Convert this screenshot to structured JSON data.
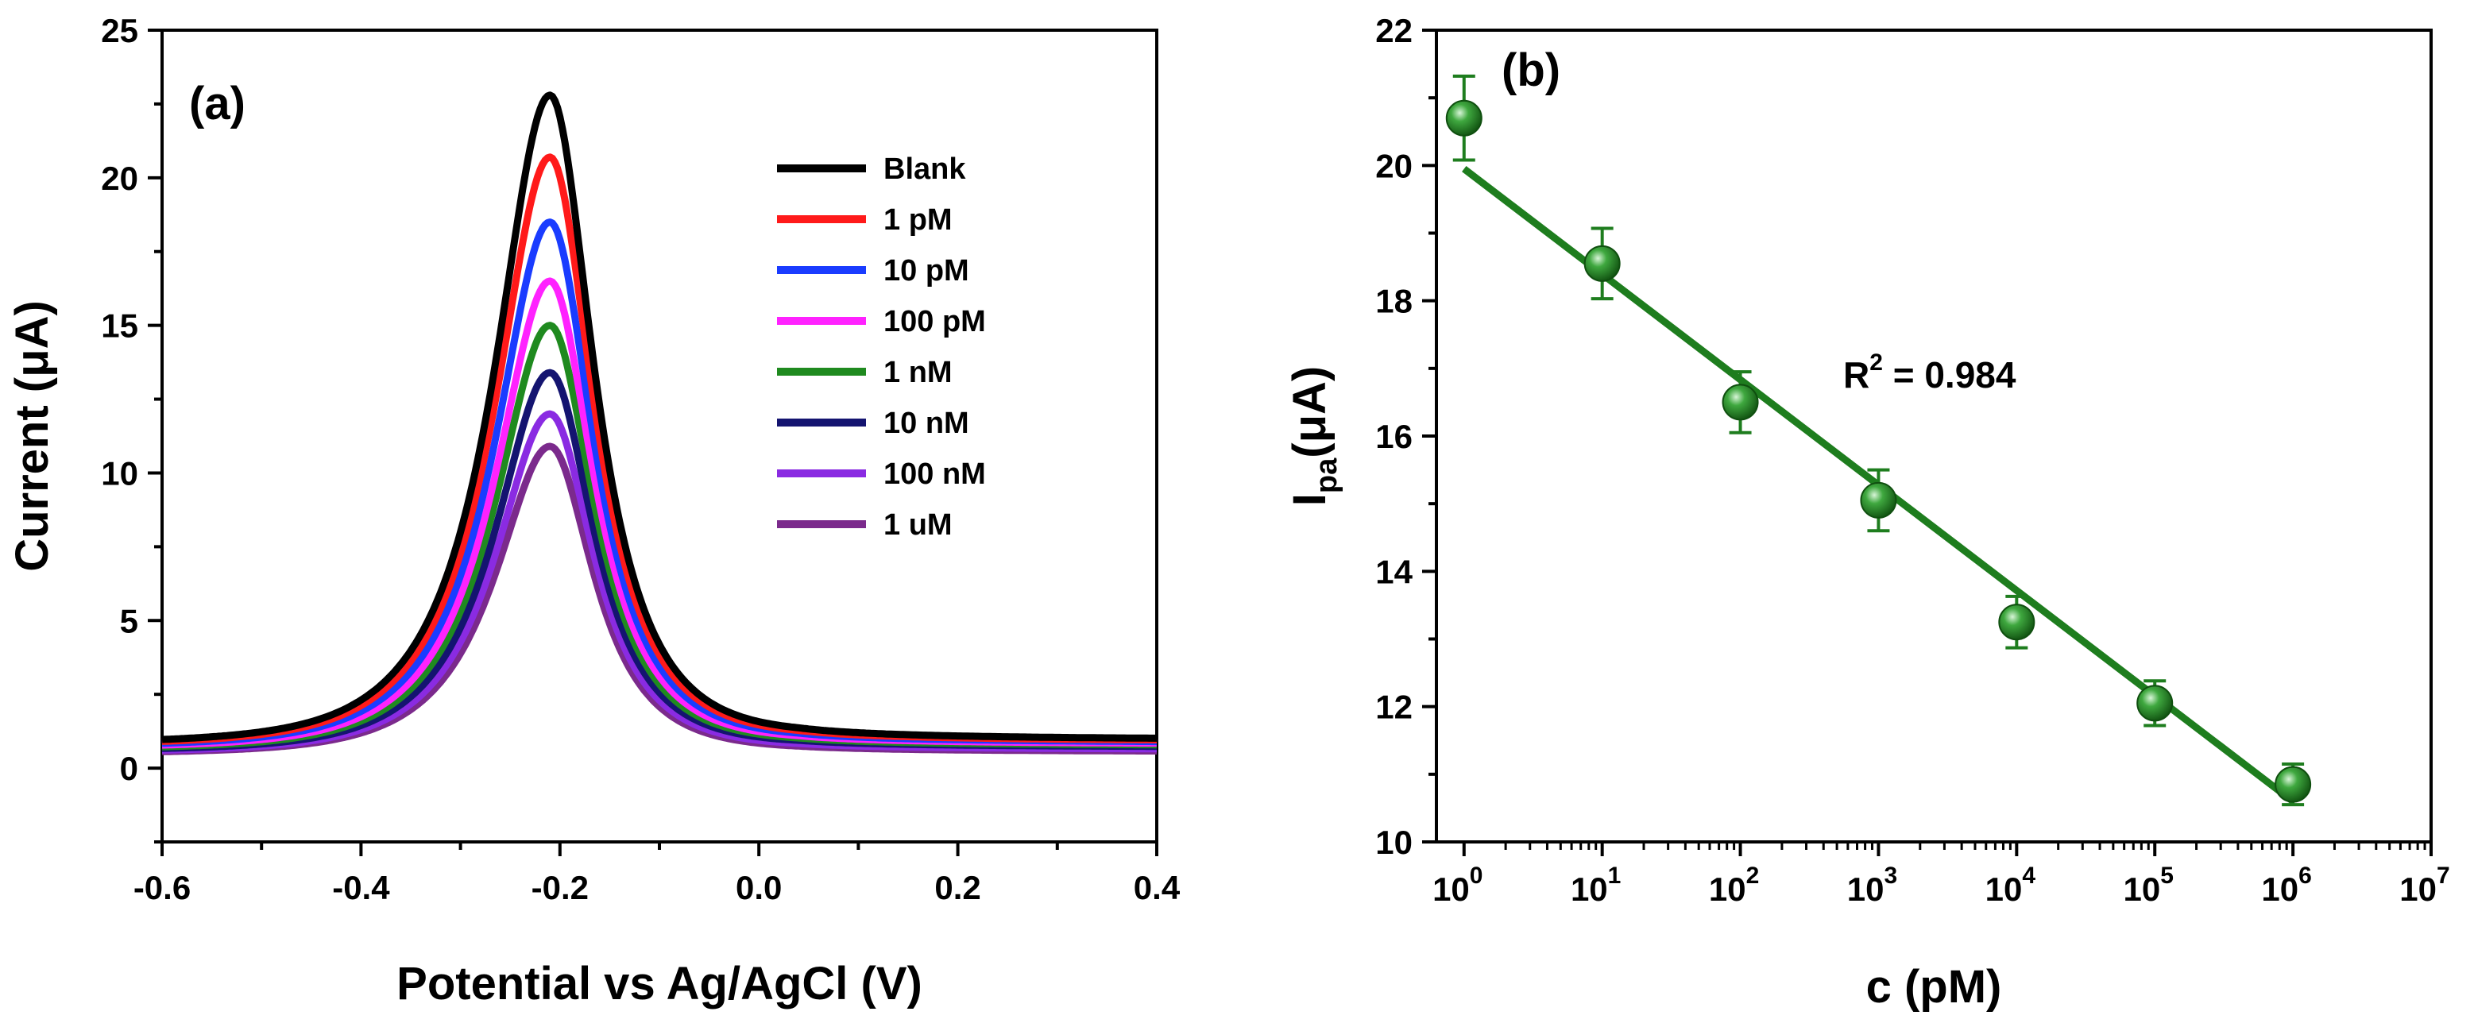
{
  "chart_data": [
    {
      "panel_label": "(a)",
      "type": "line",
      "xlabel": "Potential vs Ag/AgCl (V)",
      "ylabel": "Current (μA)",
      "xlim": [
        -0.6,
        0.4
      ],
      "ylim": [
        -2.5,
        25
      ],
      "x_ticks": [
        "-0.6",
        "-0.4",
        "-0.2",
        "0.0",
        "0.2",
        "0.4"
      ],
      "y_ticks": [
        "0",
        "5",
        "10",
        "15",
        "20",
        "25"
      ],
      "legend_position": "top-right",
      "peak_potential": -0.21,
      "series": [
        {
          "name": "Blank",
          "color": "#000000",
          "peak_current": 22.8,
          "baseline_left": 0.72,
          "baseline_right": 0.95
        },
        {
          "name": "1 pM",
          "color": "#ff1a1a",
          "peak_current": 20.7,
          "baseline_left": 0.68,
          "baseline_right": 0.9
        },
        {
          "name": "10 pM",
          "color": "#1a3cff",
          "peak_current": 18.5,
          "baseline_left": 0.64,
          "baseline_right": 0.85
        },
        {
          "name": "100 pM",
          "color": "#ff22ff",
          "peak_current": 16.5,
          "baseline_left": 0.6,
          "baseline_right": 0.8
        },
        {
          "name": "1 nM",
          "color": "#1f8a1f",
          "peak_current": 15.0,
          "baseline_left": 0.56,
          "baseline_right": 0.75
        },
        {
          "name": "10 nM",
          "color": "#141470",
          "peak_current": 13.4,
          "baseline_left": 0.52,
          "baseline_right": 0.7
        },
        {
          "name": "100 nM",
          "color": "#8a2be2",
          "peak_current": 12.0,
          "baseline_left": 0.48,
          "baseline_right": 0.62
        },
        {
          "name": "1 uM",
          "color": "#7b2a8c",
          "peak_current": 10.9,
          "baseline_left": 0.44,
          "baseline_right": 0.55
        }
      ]
    },
    {
      "panel_label": "(b)",
      "type": "scatter",
      "xscale": "log",
      "xlabel": "c (pM)",
      "ylabel_main": "I",
      "ylabel_sub": "pa",
      "ylabel_unit": "(μA)",
      "xlim_exp": [
        -0.2,
        7
      ],
      "ylim": [
        10,
        22
      ],
      "x_tick_base": "10",
      "x_tick_exponents": [
        "0",
        "1",
        "2",
        "3",
        "4",
        "5",
        "6",
        "7"
      ],
      "y_ticks": [
        "10",
        "12",
        "14",
        "16",
        "18",
        "20",
        "22"
      ],
      "color": "#1e7d1e",
      "points": [
        {
          "x": 1,
          "y": 20.7,
          "err": 0.62
        },
        {
          "x": 10,
          "y": 18.55,
          "err": 0.52
        },
        {
          "x": 100,
          "y": 16.5,
          "err": 0.45
        },
        {
          "x": 1000,
          "y": 15.05,
          "err": 0.45
        },
        {
          "x": 10000,
          "y": 13.25,
          "err": 0.38
        },
        {
          "x": 100000,
          "y": 12.05,
          "err": 0.33
        },
        {
          "x": 1000000,
          "y": 10.85,
          "err": 0.3
        }
      ],
      "fit_line": {
        "x_start": 1,
        "y_start": 19.95,
        "x_end": 1000000,
        "y_end": 10.6
      },
      "annotation": {
        "main": "R",
        "sup": "2",
        "rest": " = 0.984"
      }
    }
  ]
}
